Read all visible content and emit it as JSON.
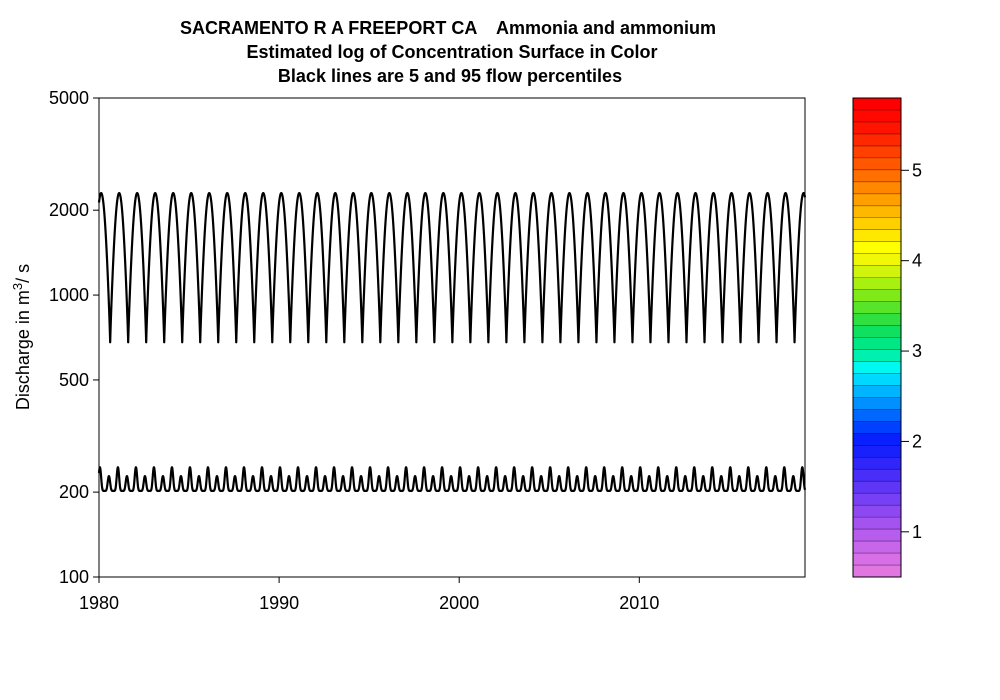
{
  "chart_data": {
    "type": "line",
    "title_lines": [
      "SACRAMENTO R A FREEPORT CA    Ammonia and ammonium",
      "Estimated log of Concentration Surface in Color",
      "Black lines are 5 and 95 flow percentiles"
    ],
    "xlabel": "",
    "ylabel": {
      "prefix": "Discharge in m",
      "superscript": "3",
      "suffix": "/ s"
    },
    "x_scale": "linear",
    "y_scale": "log",
    "xlim": [
      1980,
      2019.2
    ],
    "ylim": [
      100,
      5000
    ],
    "x_ticks": [
      1980,
      1990,
      2000,
      2010
    ],
    "y_ticks": [
      100,
      200,
      500,
      1000,
      2000,
      5000
    ],
    "grid": false,
    "series": [
      {
        "pattern": "annual cycle, one peak per year 1980-2019",
        "peak_value": 2300,
        "trough_value": 680,
        "color": "#000000"
      },
      {
        "pattern": "annual cycle, two peaks per year 1980-2019",
        "main_peak_value": 245,
        "secondary_peak_value": 228,
        "trough_value": 202,
        "color": "#000000"
      }
    ],
    "colorbar": {
      "range": [
        0.5,
        5.8
      ],
      "ticks": [
        1,
        2,
        3,
        4,
        5
      ],
      "n_bands": 40,
      "colors": [
        "#e076e0",
        "#d86fe6",
        "#c866ea",
        "#b85cee",
        "#a452f0",
        "#8e48f2",
        "#7840f4",
        "#6036f6",
        "#482ef8",
        "#3026fa",
        "#1820fc",
        "#0820fe",
        "#0040ff",
        "#0068ff",
        "#0090ff",
        "#00b4ff",
        "#00d8ff",
        "#00f8f0",
        "#00f0b0",
        "#00e884",
        "#10e060",
        "#30e040",
        "#58e428",
        "#80ea18",
        "#a8f010",
        "#d0f40c",
        "#f0f808",
        "#ffff00",
        "#ffe800",
        "#ffd000",
        "#ffb800",
        "#ffa000",
        "#ff8800",
        "#ff7000",
        "#ff5800",
        "#ff4000",
        "#ff2800",
        "#ff1400",
        "#ff0800",
        "#ff0000"
      ]
    }
  }
}
